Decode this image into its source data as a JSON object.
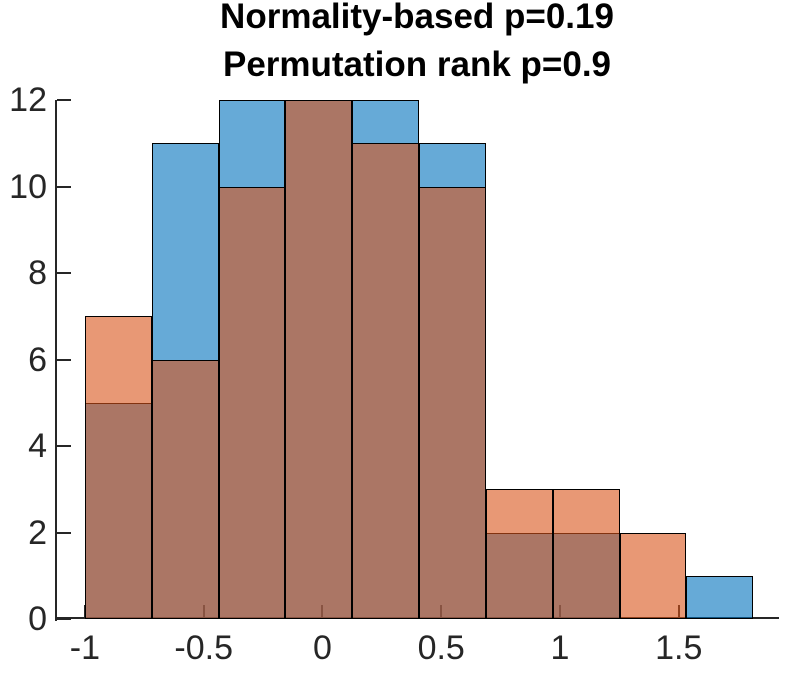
{
  "chart_data": {
    "type": "histogram",
    "title_lines": [
      "Normality-based p=0.19",
      "Permutation rank p=0.9"
    ],
    "bin_edges": [
      -1.0,
      -0.719,
      -0.437,
      -0.156,
      0.125,
      0.407,
      0.688,
      0.969,
      1.251,
      1.532,
      1.813
    ],
    "series": [
      {
        "name": "blue-sample",
        "color": "#0072BD",
        "face_alpha": 0.6,
        "counts": [
          5,
          11,
          12,
          12,
          12,
          11,
          2,
          2,
          0,
          1
        ]
      },
      {
        "name": "orange-sample",
        "color": "#D95319",
        "face_alpha": 0.6,
        "counts": [
          7,
          6,
          10,
          12,
          11,
          10,
          3,
          3,
          2,
          0
        ]
      }
    ],
    "edge_color": "#000000",
    "axis_color": "#262626",
    "tick_label_color": "#262626",
    "title_color": "#000000",
    "xticks": [
      -1,
      -0.5,
      0,
      0.5,
      1,
      1.5
    ],
    "xtick_labels": [
      "-1",
      "-0.5",
      "0",
      "0.5",
      "1",
      "1.5"
    ],
    "yticks": [
      0,
      2,
      4,
      6,
      8,
      10,
      12
    ],
    "ytick_labels": [
      "0",
      "2",
      "4",
      "6",
      "8",
      "10",
      "12"
    ],
    "xlim": [
      -1.126,
      1.922
    ],
    "ylim": [
      0,
      12
    ],
    "grid": false,
    "legend": null
  }
}
